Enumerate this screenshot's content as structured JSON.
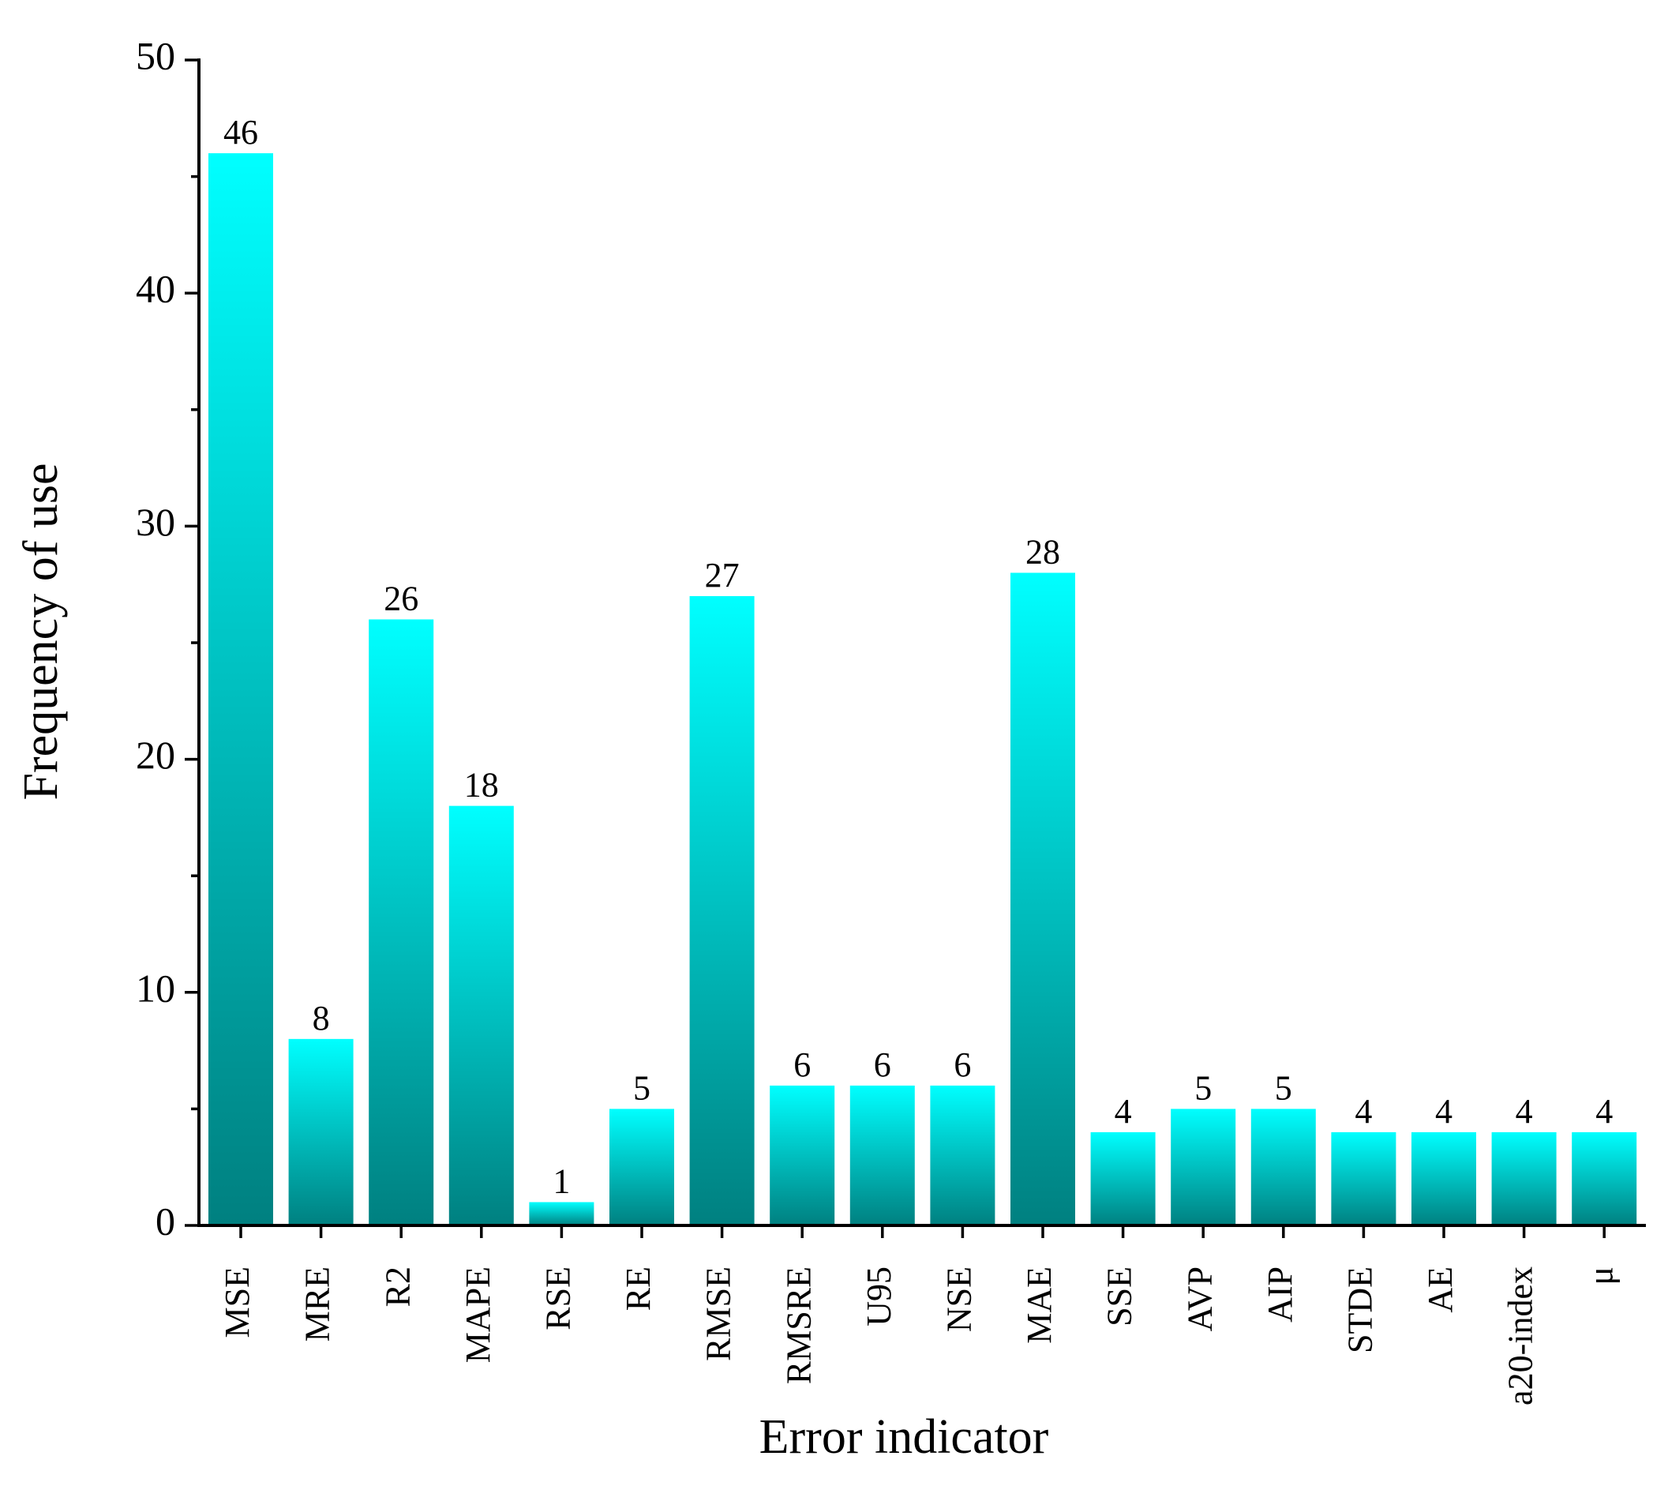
{
  "chart_data": {
    "type": "bar",
    "title": "",
    "xlabel": "Error indicator",
    "ylabel": "Frequency of use",
    "ylim": [
      0,
      50
    ],
    "yticks": [
      "0",
      "10",
      "20",
      "30",
      "40",
      "50"
    ],
    "grid": false,
    "legend": "none",
    "categories": [
      "MSE",
      "MRE",
      "R2",
      "MAPE",
      "RSE",
      "RE",
      "RMSE",
      "RMSRE",
      "U95",
      "NSE",
      "MAE",
      "SSE",
      "AVP",
      "AIP",
      "STDE",
      "AE",
      "a20-index",
      "μ"
    ],
    "values": [
      46,
      8,
      26,
      18,
      1,
      5,
      27,
      6,
      6,
      6,
      28,
      4,
      5,
      5,
      4,
      4,
      4,
      4
    ],
    "value_labels": [
      "46",
      "8",
      "26",
      "18",
      "1",
      "5",
      "27",
      "6",
      "6",
      "6",
      "28",
      "4",
      "5",
      "5",
      "4",
      "4",
      "4",
      "4"
    ],
    "colors": {
      "bar_top": "#00ffff",
      "bar_bottom": "#008080"
    }
  }
}
